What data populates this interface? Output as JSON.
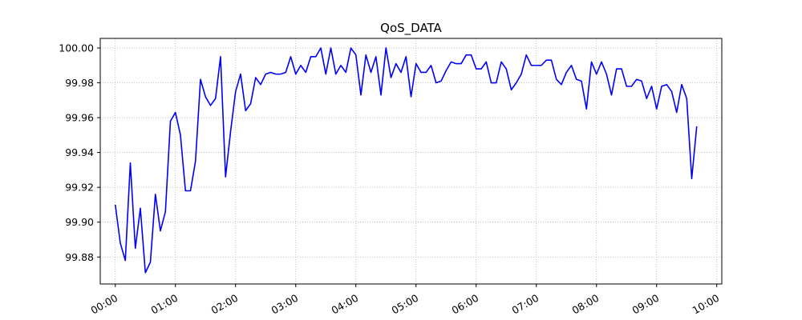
{
  "chart_data": {
    "type": "line",
    "title": "QoS_DATA",
    "xlabel": "",
    "ylabel": "",
    "grid": true,
    "legend": "none",
    "line_color": "#0000ff",
    "xlim": [
      "-00:15",
      "10:05"
    ],
    "ylim": [
      99.8645,
      100.0055
    ],
    "x_ticks": [
      "00:00",
      "01:00",
      "02:00",
      "03:00",
      "04:00",
      "05:00",
      "06:00",
      "07:00",
      "08:00",
      "09:00",
      "10:00"
    ],
    "y_ticks": [
      "99.88",
      "99.90",
      "99.92",
      "99.94",
      "99.96",
      "99.98",
      "100.00"
    ],
    "series": [
      {
        "name": "",
        "x": [
          "00:00",
          "00:05",
          "00:10",
          "00:15",
          "00:20",
          "00:25",
          "00:30",
          "00:35",
          "00:40",
          "00:45",
          "00:50",
          "00:55",
          "01:00",
          "01:05",
          "01:10",
          "01:15",
          "01:20",
          "01:25",
          "01:30",
          "01:35",
          "01:40",
          "01:45",
          "01:50",
          "01:55",
          "02:00",
          "02:05",
          "02:10",
          "02:15",
          "02:20",
          "02:25",
          "02:30",
          "02:35",
          "02:40",
          "02:45",
          "02:50",
          "02:55",
          "03:00",
          "03:05",
          "03:10",
          "03:15",
          "03:20",
          "03:25",
          "03:30",
          "03:35",
          "03:40",
          "03:45",
          "03:50",
          "03:55",
          "04:00",
          "04:05",
          "04:10",
          "04:15",
          "04:20",
          "04:25",
          "04:30",
          "04:35",
          "04:40",
          "04:45",
          "04:50",
          "04:55",
          "05:00",
          "05:05",
          "05:10",
          "05:15",
          "05:20",
          "05:25",
          "05:30",
          "05:35",
          "05:40",
          "05:45",
          "05:50",
          "05:55",
          "06:00",
          "06:05",
          "06:10",
          "06:15",
          "06:20",
          "06:25",
          "06:30",
          "06:35",
          "06:40",
          "06:45",
          "06:50",
          "06:55",
          "07:00",
          "07:05",
          "07:10",
          "07:15",
          "07:20",
          "07:25",
          "07:30",
          "07:35",
          "07:40",
          "07:45",
          "07:50",
          "07:55",
          "08:00",
          "08:05",
          "08:10",
          "08:15",
          "08:20",
          "08:25",
          "08:30",
          "08:35",
          "08:40",
          "08:45",
          "08:50",
          "08:55",
          "09:00",
          "09:05",
          "09:10",
          "09:15",
          "09:20",
          "09:25",
          "09:30",
          "09:35",
          "09:40"
        ],
        "values": [
          99.91,
          99.888,
          99.878,
          99.934,
          99.885,
          99.908,
          99.871,
          99.877,
          99.916,
          99.895,
          99.906,
          99.958,
          99.963,
          99.95,
          99.918,
          99.918,
          99.935,
          99.982,
          99.972,
          99.967,
          99.971,
          99.995,
          99.926,
          99.952,
          99.975,
          99.985,
          99.964,
          99.968,
          99.983,
          99.979,
          99.985,
          99.986,
          99.985,
          99.985,
          99.986,
          99.995,
          99.985,
          99.99,
          99.986,
          99.995,
          99.995,
          100.0,
          99.985,
          100.0,
          99.985,
          99.99,
          99.986,
          100.0,
          99.996,
          99.973,
          99.996,
          99.986,
          99.995,
          99.973,
          100.0,
          99.983,
          99.991,
          99.986,
          99.995,
          99.972,
          99.991,
          99.986,
          99.986,
          99.99,
          99.98,
          99.981,
          99.987,
          99.992,
          99.991,
          99.991,
          99.996,
          99.996,
          99.988,
          99.988,
          99.992,
          99.98,
          99.98,
          99.992,
          99.988,
          99.976,
          99.98,
          99.985,
          99.996,
          99.99,
          99.99,
          99.99,
          99.993,
          99.993,
          99.982,
          99.979,
          99.986,
          99.99,
          99.982,
          99.981,
          99.965,
          99.992,
          99.985,
          99.992,
          99.985,
          99.973,
          99.988,
          99.988,
          99.978,
          99.978,
          99.982,
          99.981,
          99.971,
          99.978,
          99.965,
          99.978,
          99.979,
          99.975,
          99.963,
          99.979,
          99.971,
          99.925,
          99.955
        ]
      }
    ]
  }
}
